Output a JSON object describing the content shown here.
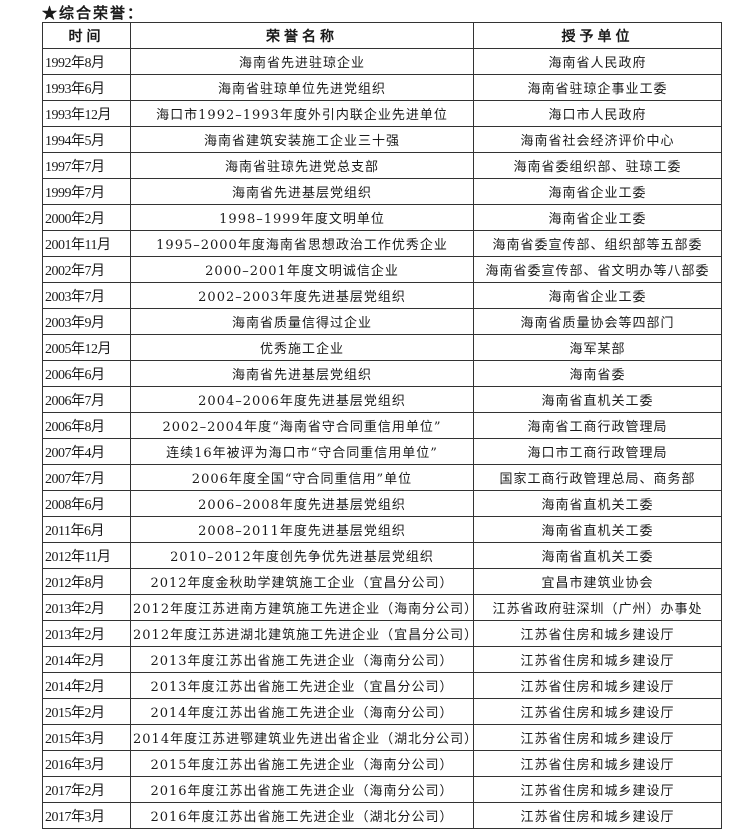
{
  "title": "★综合荣誉：",
  "table": {
    "headers": [
      "时间",
      "荣誉名称",
      "授予单位"
    ],
    "rows": [
      [
        "1992年8月",
        "海南省先进驻琼企业",
        "海南省人民政府"
      ],
      [
        "1993年6月",
        "海南省驻琼单位先进党组织",
        "海南省驻琼企事业工委"
      ],
      [
        "1993年12月",
        "海口市1992–1993年度外引内联企业先进单位",
        "海口市人民政府"
      ],
      [
        "1994年5月",
        "海南省建筑安装施工企业三十强",
        "海南省社会经济评价中心"
      ],
      [
        "1997年7月",
        "海南省驻琼先进党总支部",
        "海南省委组织部、驻琼工委"
      ],
      [
        "1999年7月",
        "海南省先进基层党组织",
        "海南省企业工委"
      ],
      [
        "2000年2月",
        "1998–1999年度文明单位",
        "海南省企业工委"
      ],
      [
        "2001年11月",
        "1995–2000年度海南省思想政治工作优秀企业",
        "海南省委宣传部、组织部等五部委"
      ],
      [
        "2002年7月",
        "2000–2001年度文明诚信企业",
        "海南省委宣传部、省文明办等八部委"
      ],
      [
        "2003年7月",
        "2002–2003年度先进基层党组织",
        "海南省企业工委"
      ],
      [
        "2003年9月",
        "海南省质量信得过企业",
        "海南省质量协会等四部门"
      ],
      [
        "2005年12月",
        "优秀施工企业",
        "海军某部"
      ],
      [
        "2006年6月",
        "海南省先进基层党组织",
        "海南省委"
      ],
      [
        "2006年7月",
        "2004–2006年度先进基层党组织",
        "海南省直机关工委"
      ],
      [
        "2006年8月",
        "2002–2004年度“海南省守合同重信用单位”",
        "海南省工商行政管理局"
      ],
      [
        "2007年4月",
        "连续16年被评为海口市“守合同重信用单位”",
        "海口市工商行政管理局"
      ],
      [
        "2007年7月",
        "2006年度全国“守合同重信用”单位",
        "国家工商行政管理总局、商务部"
      ],
      [
        "2008年6月",
        "2006–2008年度先进基层党组织",
        "海南省直机关工委"
      ],
      [
        "2011年6月",
        "2008–2011年度先进基层党组织",
        "海南省直机关工委"
      ],
      [
        "2012年11月",
        "2010–2012年度创先争优先进基层党组织",
        "海南省直机关工委"
      ],
      [
        "2012年8月",
        "2012年度金秋助学建筑施工企业（宜昌分公司）",
        "宜昌市建筑业协会"
      ],
      [
        "2013年2月",
        "2012年度江苏进南方建筑施工先进企业（海南分公司）",
        "江苏省政府驻深圳（广州）办事处"
      ],
      [
        "2013年2月",
        "2012年度江苏进湖北建筑施工先进企业（宜昌分公司）",
        "江苏省住房和城乡建设厅"
      ],
      [
        "2014年2月",
        "2013年度江苏出省施工先进企业（海南分公司）",
        "江苏省住房和城乡建设厅"
      ],
      [
        "2014年2月",
        "2013年度江苏出省施工先进企业（宜昌分公司）",
        "江苏省住房和城乡建设厅"
      ],
      [
        "2015年2月",
        "2014年度江苏出省施工先进企业（海南分公司）",
        "江苏省住房和城乡建设厅"
      ],
      [
        "2015年3月",
        "2014年度江苏进鄂建筑业先进出省企业（湖北分公司）",
        "江苏省住房和城乡建设厅"
      ],
      [
        "2016年3月",
        "2015年度江苏出省施工先进企业（海南分公司）",
        "江苏省住房和城乡建设厅"
      ],
      [
        "2017年2月",
        "2016年度江苏出省施工先进企业（海南分公司）",
        "江苏省住房和城乡建设厅"
      ],
      [
        "2017年3月",
        "2016年度江苏出省施工先进企业（湖北分公司）",
        "江苏省住房和城乡建设厅"
      ]
    ]
  }
}
